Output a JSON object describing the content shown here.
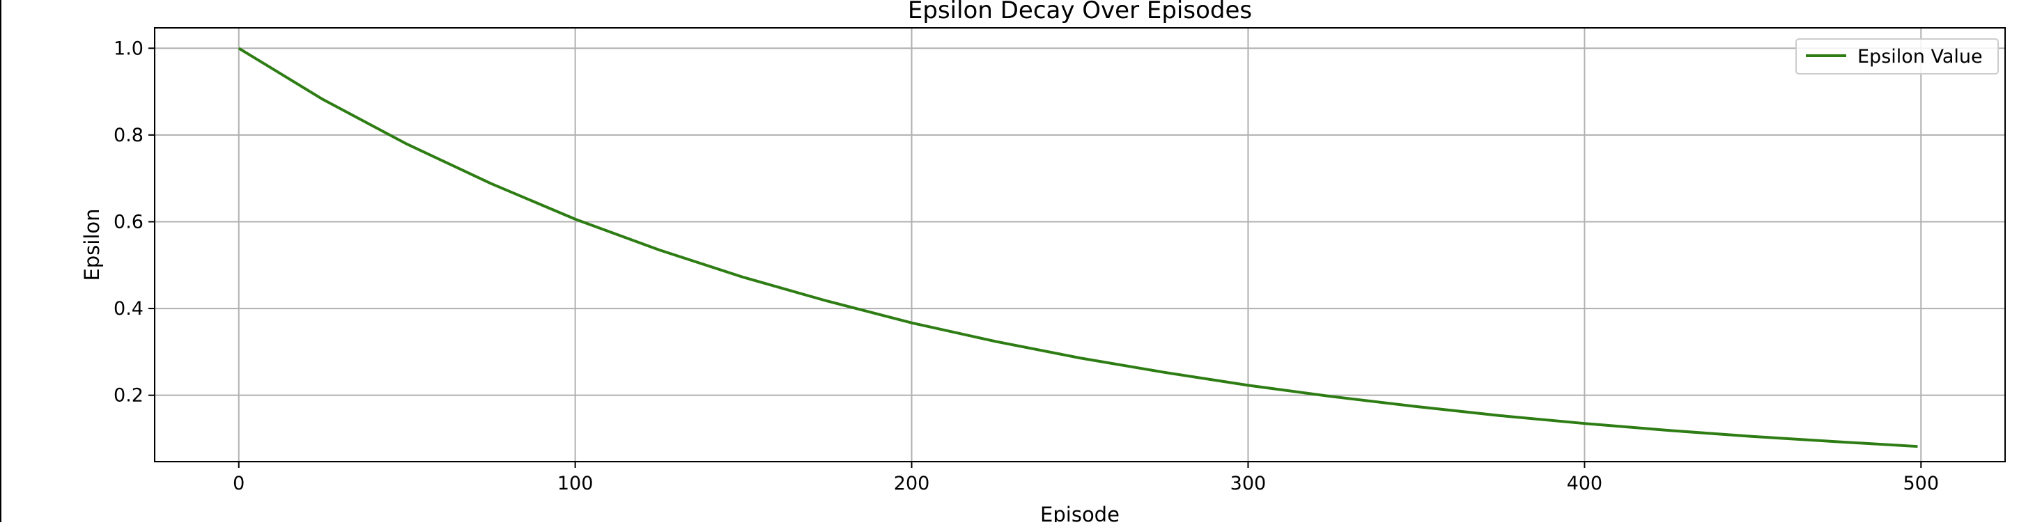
{
  "chart_data": {
    "type": "line",
    "title": "Epsilon Decay Over Episodes",
    "xlabel": "Episode",
    "ylabel": "Epsilon",
    "xlim": [
      -25,
      525
    ],
    "ylim": [
      0.047,
      1.047
    ],
    "x_ticks": [
      0,
      100,
      200,
      300,
      400,
      500
    ],
    "y_ticks": [
      0.2,
      0.4,
      0.6,
      0.8,
      1.0
    ],
    "x_tick_labels": [
      "0",
      "100",
      "200",
      "300",
      "400",
      "500"
    ],
    "y_tick_labels": [
      "0.2",
      "0.4",
      "0.6",
      "0.8",
      "1.0"
    ],
    "grid": true,
    "legend_position": "top-right",
    "series": [
      {
        "name": "Epsilon Value",
        "color": "#2e7d14",
        "x": [
          0,
          25,
          50,
          75,
          100,
          125,
          150,
          175,
          200,
          225,
          250,
          275,
          300,
          325,
          350,
          375,
          400,
          425,
          450,
          475,
          499
        ],
        "y": [
          1.0,
          0.882,
          0.779,
          0.688,
          0.606,
          0.535,
          0.472,
          0.417,
          0.367,
          0.324,
          0.286,
          0.253,
          0.223,
          0.197,
          0.174,
          0.153,
          0.135,
          0.119,
          0.105,
          0.093,
          0.082
        ]
      }
    ]
  }
}
